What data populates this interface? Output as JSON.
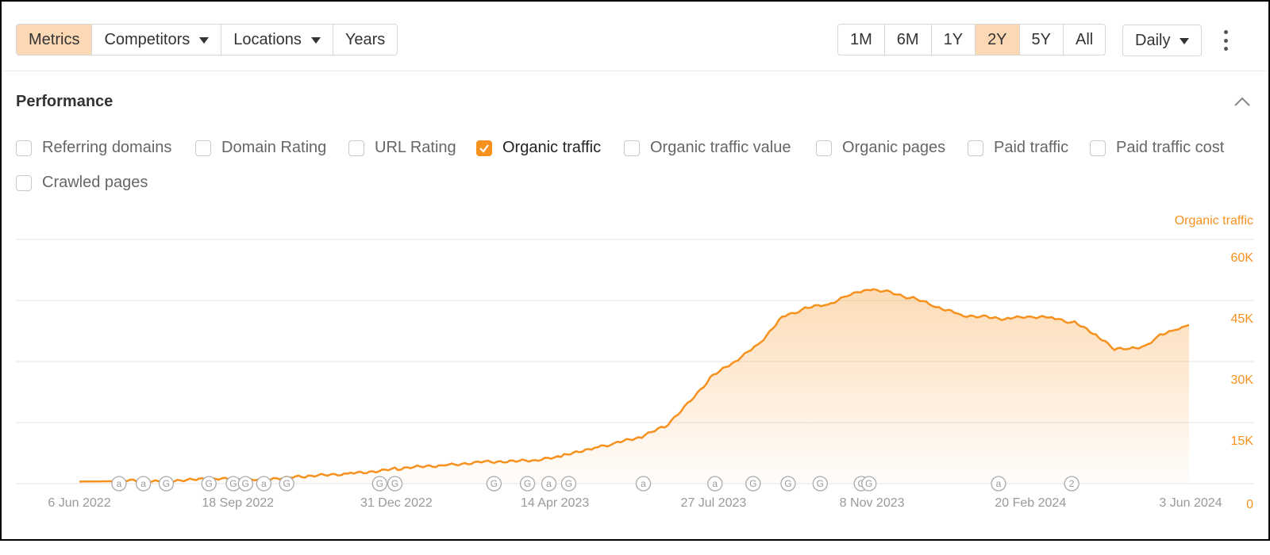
{
  "toolbar": {
    "left_buttons": [
      {
        "label": "Metrics",
        "active": true,
        "dropdown": false
      },
      {
        "label": "Competitors",
        "active": false,
        "dropdown": true
      },
      {
        "label": "Locations",
        "active": false,
        "dropdown": true
      },
      {
        "label": "Years",
        "active": false,
        "dropdown": false
      }
    ],
    "ranges": [
      {
        "label": "1M",
        "active": false
      },
      {
        "label": "6M",
        "active": false
      },
      {
        "label": "1Y",
        "active": false
      },
      {
        "label": "2Y",
        "active": true
      },
      {
        "label": "5Y",
        "active": false
      },
      {
        "label": "All",
        "active": false
      }
    ],
    "interval": "Daily",
    "more_icon": "more-vertical-icon"
  },
  "performance": {
    "title": "Performance",
    "collapse_icon": "chevron-up-icon",
    "metrics": [
      {
        "label": "Referring domains",
        "checked": false
      },
      {
        "label": "Domain Rating",
        "checked": false
      },
      {
        "label": "URL Rating",
        "checked": false
      },
      {
        "label": "Organic traffic",
        "checked": true
      },
      {
        "label": "Organic traffic value",
        "checked": false
      },
      {
        "label": "Organic pages",
        "checked": false
      },
      {
        "label": "Paid traffic",
        "checked": false
      },
      {
        "label": "Paid traffic cost",
        "checked": false
      },
      {
        "label": "Crawled pages",
        "checked": false
      }
    ]
  },
  "colors": {
    "accent": "#f7911e",
    "active_bg": "#fdd8b5",
    "grid": "#e6e6e6",
    "axis_text": "#999999"
  },
  "chart_data": {
    "type": "area",
    "series": [
      {
        "name": "Organic traffic",
        "x": [
          "2022-06-06",
          "2022-07-01",
          "2022-08-01",
          "2022-09-01",
          "2022-10-01",
          "2022-11-01",
          "2022-12-01",
          "2023-01-01",
          "2023-02-01",
          "2023-03-01",
          "2023-04-01",
          "2023-04-20",
          "2023-05-10",
          "2023-05-25",
          "2023-06-10",
          "2023-06-25",
          "2023-07-10",
          "2023-07-25",
          "2023-08-10",
          "2023-08-25",
          "2023-09-10",
          "2023-09-25",
          "2023-10-10",
          "2023-10-25",
          "2023-11-05",
          "2023-11-20",
          "2023-12-05",
          "2023-12-20",
          "2024-01-05",
          "2024-01-20",
          "2024-02-05",
          "2024-02-20",
          "2024-03-05",
          "2024-03-20",
          "2024-04-05",
          "2024-04-15",
          "2024-04-25",
          "2024-05-05",
          "2024-05-15",
          "2024-05-25",
          "2024-06-03"
        ],
        "values": [
          500,
          600,
          800,
          1000,
          1200,
          1600,
          2600,
          3600,
          4600,
          5500,
          5500,
          6800,
          9000,
          10000,
          11500,
          14000,
          19500,
          26000,
          30000,
          34000,
          41000,
          43000,
          44000,
          46500,
          48000,
          47000,
          45500,
          43500,
          41500,
          41000,
          40500,
          41000,
          40800,
          39500,
          36000,
          33000,
          33000,
          33500,
          36500,
          38000,
          39000
        ]
      }
    ],
    "x_tick_labels": [
      "6 Jun 2022",
      "18 Sep 2022",
      "31 Dec 2022",
      "14 Apr 2023",
      "27 Jul 2023",
      "8 Nov 2023",
      "20 Feb 2024",
      "3 Jun 2024"
    ],
    "y_ticks": [
      0,
      15000,
      30000,
      45000,
      60000
    ],
    "y_tick_labels": [
      "0",
      "15K",
      "30K",
      "45K",
      "60K"
    ],
    "y_axis_title": "Organic traffic",
    "ylim": [
      0,
      60000
    ],
    "grid": true,
    "annotations": [
      {
        "date": "2022-07-02",
        "symbol": "a"
      },
      {
        "date": "2022-07-18",
        "symbol": "a"
      },
      {
        "date": "2022-08-02",
        "symbol": "G"
      },
      {
        "date": "2022-08-30",
        "symbol": "G"
      },
      {
        "date": "2022-09-15",
        "symbol": "G"
      },
      {
        "date": "2022-09-23",
        "symbol": "G"
      },
      {
        "date": "2022-10-05",
        "symbol": "a"
      },
      {
        "date": "2022-10-20",
        "symbol": "G"
      },
      {
        "date": "2022-12-20",
        "symbol": "G"
      },
      {
        "date": "2022-12-30",
        "symbol": "G"
      },
      {
        "date": "2023-03-05",
        "symbol": "G"
      },
      {
        "date": "2023-03-27",
        "symbol": "G"
      },
      {
        "date": "2023-04-10",
        "symbol": "a"
      },
      {
        "date": "2023-04-23",
        "symbol": "G"
      },
      {
        "date": "2023-06-11",
        "symbol": "a"
      },
      {
        "date": "2023-07-28",
        "symbol": "a"
      },
      {
        "date": "2023-08-22",
        "symbol": "G"
      },
      {
        "date": "2023-09-14",
        "symbol": "G"
      },
      {
        "date": "2023-10-05",
        "symbol": "G"
      },
      {
        "date": "2023-11-01",
        "symbol": "G"
      },
      {
        "date": "2023-11-06",
        "symbol": "G"
      },
      {
        "date": "2024-01-30",
        "symbol": "a"
      },
      {
        "date": "2024-03-18",
        "symbol": "2"
      }
    ]
  }
}
